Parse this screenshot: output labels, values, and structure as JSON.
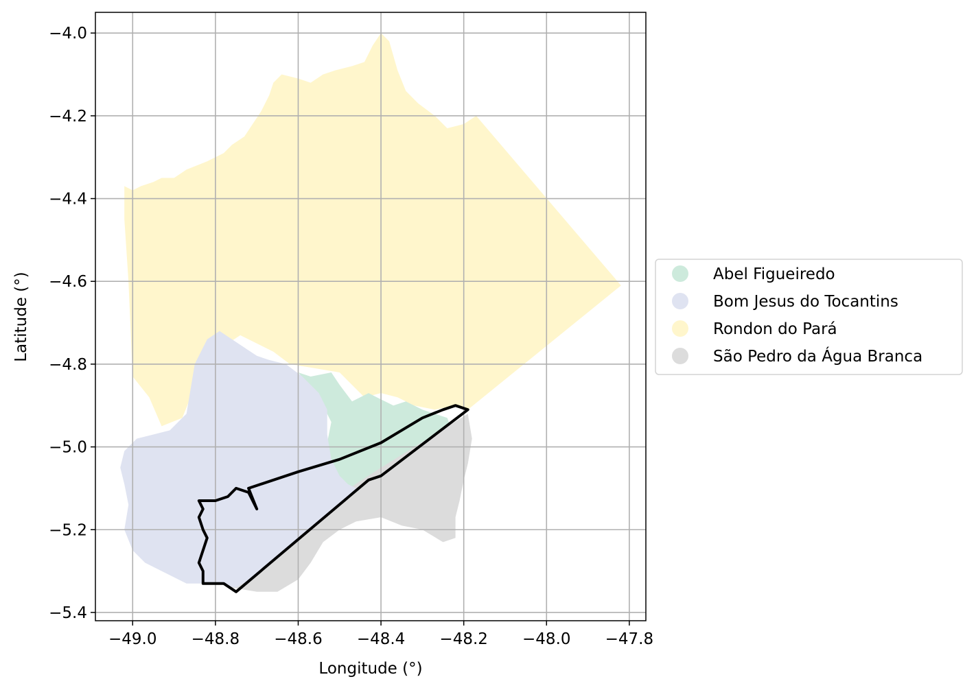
{
  "chart_data": {
    "type": "map",
    "xlabel": "Longitude (°)",
    "ylabel": "Latitude (°)",
    "xlim": [
      -49.09,
      -47.76
    ],
    "ylim": [
      -5.42,
      -3.95
    ],
    "grid": true,
    "legend_position": "center-right outside",
    "x_ticks": [
      -49.0,
      -48.8,
      -48.6,
      -48.4,
      -48.2,
      -48.0,
      -47.8
    ],
    "x_tick_labels": [
      "−49.0",
      "−48.8",
      "−48.6",
      "−48.4",
      "−48.2",
      "−48.0",
      "−47.8"
    ],
    "y_ticks": [
      -4.0,
      -4.2,
      -4.4,
      -4.6,
      -4.8,
      -5.0,
      -5.2,
      -5.4
    ],
    "y_tick_labels": [
      "−4.0",
      "−4.2",
      "−4.4",
      "−4.6",
      "−4.8",
      "−5.0",
      "−5.2",
      "−5.4"
    ],
    "regions": [
      {
        "name": "Rondon do Pará",
        "color": "#fff6cc",
        "coords": [
          [
            -49.02,
            -4.37
          ],
          [
            -49.0,
            -4.38
          ],
          [
            -48.98,
            -4.37
          ],
          [
            -48.95,
            -4.36
          ],
          [
            -48.93,
            -4.35
          ],
          [
            -48.9,
            -4.35
          ],
          [
            -48.87,
            -4.33
          ],
          [
            -48.82,
            -4.31
          ],
          [
            -48.78,
            -4.29
          ],
          [
            -48.76,
            -4.27
          ],
          [
            -48.73,
            -4.25
          ],
          [
            -48.71,
            -4.22
          ],
          [
            -48.69,
            -4.19
          ],
          [
            -48.67,
            -4.15
          ],
          [
            -48.66,
            -4.12
          ],
          [
            -48.64,
            -4.1
          ],
          [
            -48.6,
            -4.11
          ],
          [
            -48.57,
            -4.12
          ],
          [
            -48.54,
            -4.1
          ],
          [
            -48.51,
            -4.09
          ],
          [
            -48.47,
            -4.08
          ],
          [
            -48.44,
            -4.07
          ],
          [
            -48.42,
            -4.03
          ],
          [
            -48.4,
            -4.0
          ],
          [
            -48.38,
            -4.02
          ],
          [
            -48.36,
            -4.09
          ],
          [
            -48.34,
            -4.14
          ],
          [
            -48.31,
            -4.17
          ],
          [
            -48.27,
            -4.2
          ],
          [
            -48.24,
            -4.23
          ],
          [
            -48.2,
            -4.22
          ],
          [
            -48.17,
            -4.2
          ],
          [
            -47.82,
            -4.61
          ],
          [
            -48.19,
            -4.91
          ],
          [
            -48.22,
            -4.9
          ],
          [
            -48.27,
            -4.91
          ],
          [
            -48.32,
            -4.9
          ],
          [
            -48.36,
            -4.88
          ],
          [
            -48.4,
            -4.87
          ],
          [
            -48.44,
            -4.88
          ],
          [
            -48.5,
            -4.82
          ],
          [
            -48.56,
            -4.81
          ],
          [
            -48.62,
            -4.8
          ],
          [
            -48.66,
            -4.77
          ],
          [
            -48.7,
            -4.75
          ],
          [
            -48.74,
            -4.73
          ],
          [
            -48.77,
            -4.75
          ],
          [
            -48.8,
            -4.77
          ],
          [
            -48.83,
            -4.83
          ],
          [
            -48.86,
            -4.88
          ],
          [
            -48.88,
            -4.93
          ],
          [
            -48.93,
            -4.95
          ],
          [
            -48.96,
            -4.88
          ],
          [
            -49.0,
            -4.83
          ],
          [
            -49.01,
            -4.6
          ],
          [
            -49.02,
            -4.45
          ]
        ]
      },
      {
        "name": "Abel Figueiredo",
        "color": "#cdeadc",
        "coords": [
          [
            -48.6,
            -4.82
          ],
          [
            -48.57,
            -4.83
          ],
          [
            -48.52,
            -4.82
          ],
          [
            -48.5,
            -4.85
          ],
          [
            -48.47,
            -4.89
          ],
          [
            -48.43,
            -4.87
          ],
          [
            -48.41,
            -4.88
          ],
          [
            -48.37,
            -4.9
          ],
          [
            -48.34,
            -4.89
          ],
          [
            -48.3,
            -4.91
          ],
          [
            -48.24,
            -4.93
          ],
          [
            -48.22,
            -4.98
          ],
          [
            -48.31,
            -5.02
          ],
          [
            -48.38,
            -5.06
          ],
          [
            -48.43,
            -5.09
          ],
          [
            -48.47,
            -5.1
          ],
          [
            -48.5,
            -5.08
          ],
          [
            -48.52,
            -5.04
          ],
          [
            -48.53,
            -4.99
          ],
          [
            -48.52,
            -4.94
          ],
          [
            -48.55,
            -4.88
          ]
        ]
      },
      {
        "name": "São Pedro da Água Branca",
        "color": "#dcdcdc",
        "coords": [
          [
            -48.19,
            -4.92
          ],
          [
            -48.18,
            -4.98
          ],
          [
            -48.19,
            -5.04
          ],
          [
            -48.2,
            -5.08
          ],
          [
            -48.21,
            -5.13
          ],
          [
            -48.22,
            -5.17
          ],
          [
            -48.22,
            -5.22
          ],
          [
            -48.25,
            -5.23
          ],
          [
            -48.3,
            -5.2
          ],
          [
            -48.35,
            -5.19
          ],
          [
            -48.4,
            -5.17
          ],
          [
            -48.46,
            -5.18
          ],
          [
            -48.5,
            -5.2
          ],
          [
            -48.54,
            -5.23
          ],
          [
            -48.57,
            -5.28
          ],
          [
            -48.6,
            -5.32
          ],
          [
            -48.65,
            -5.35
          ],
          [
            -48.7,
            -5.35
          ],
          [
            -48.76,
            -5.34
          ],
          [
            -48.8,
            -5.31
          ],
          [
            -48.4,
            -5.05
          ]
        ]
      },
      {
        "name": "Bom Jesus do Tocantins",
        "color": "#dfe3f1",
        "coords": [
          [
            -48.82,
            -4.74
          ],
          [
            -48.79,
            -4.72
          ],
          [
            -48.76,
            -4.74
          ],
          [
            -48.73,
            -4.76
          ],
          [
            -48.7,
            -4.78
          ],
          [
            -48.67,
            -4.79
          ],
          [
            -48.63,
            -4.8
          ],
          [
            -48.59,
            -4.83
          ],
          [
            -48.55,
            -4.87
          ],
          [
            -48.53,
            -4.91
          ],
          [
            -48.53,
            -4.97
          ],
          [
            -48.52,
            -5.03
          ],
          [
            -48.5,
            -5.07
          ],
          [
            -48.48,
            -5.09
          ],
          [
            -48.46,
            -5.1
          ],
          [
            -48.5,
            -5.14
          ],
          [
            -48.55,
            -5.18
          ],
          [
            -48.6,
            -5.22
          ],
          [
            -48.65,
            -5.27
          ],
          [
            -48.7,
            -5.31
          ],
          [
            -48.75,
            -5.34
          ],
          [
            -48.8,
            -5.33
          ],
          [
            -48.87,
            -5.33
          ],
          [
            -48.93,
            -5.3
          ],
          [
            -48.97,
            -5.28
          ],
          [
            -49.0,
            -5.25
          ],
          [
            -49.02,
            -5.2
          ],
          [
            -49.01,
            -5.14
          ],
          [
            -49.02,
            -5.09
          ],
          [
            -49.03,
            -5.05
          ],
          [
            -49.02,
            -5.01
          ],
          [
            -48.99,
            -4.98
          ],
          [
            -48.95,
            -4.97
          ],
          [
            -48.91,
            -4.96
          ],
          [
            -48.87,
            -4.92
          ],
          [
            -48.86,
            -4.86
          ],
          [
            -48.85,
            -4.8
          ]
        ]
      }
    ],
    "outline": {
      "color": "#000000",
      "coords": [
        [
          -48.75,
          -5.35
        ],
        [
          -48.78,
          -5.33
        ],
        [
          -48.83,
          -5.33
        ],
        [
          -48.83,
          -5.3
        ],
        [
          -48.84,
          -5.28
        ],
        [
          -48.83,
          -5.25
        ],
        [
          -48.82,
          -5.22
        ],
        [
          -48.83,
          -5.2
        ],
        [
          -48.84,
          -5.17
        ],
        [
          -48.83,
          -5.15
        ],
        [
          -48.84,
          -5.13
        ],
        [
          -48.8,
          -5.13
        ],
        [
          -48.77,
          -5.12
        ],
        [
          -48.75,
          -5.1
        ],
        [
          -48.72,
          -5.11
        ],
        [
          -48.7,
          -5.15
        ],
        [
          -48.72,
          -5.1
        ],
        [
          -48.6,
          -5.06
        ],
        [
          -48.5,
          -5.03
        ],
        [
          -48.4,
          -4.99
        ],
        [
          -48.3,
          -4.93
        ],
        [
          -48.25,
          -4.91
        ],
        [
          -48.22,
          -4.9
        ],
        [
          -48.19,
          -4.91
        ],
        [
          -48.4,
          -5.07
        ],
        [
          -48.43,
          -5.08
        ]
      ]
    },
    "legend": [
      {
        "label": "Abel Figueiredo",
        "color": "#cdeadc"
      },
      {
        "label": "Bom Jesus do Tocantins",
        "color": "#dfe3f1"
      },
      {
        "label": "Rondon do Pará",
        "color": "#fff6cc"
      },
      {
        "label": "São Pedro da Água Branca",
        "color": "#dcdcdc"
      }
    ]
  }
}
